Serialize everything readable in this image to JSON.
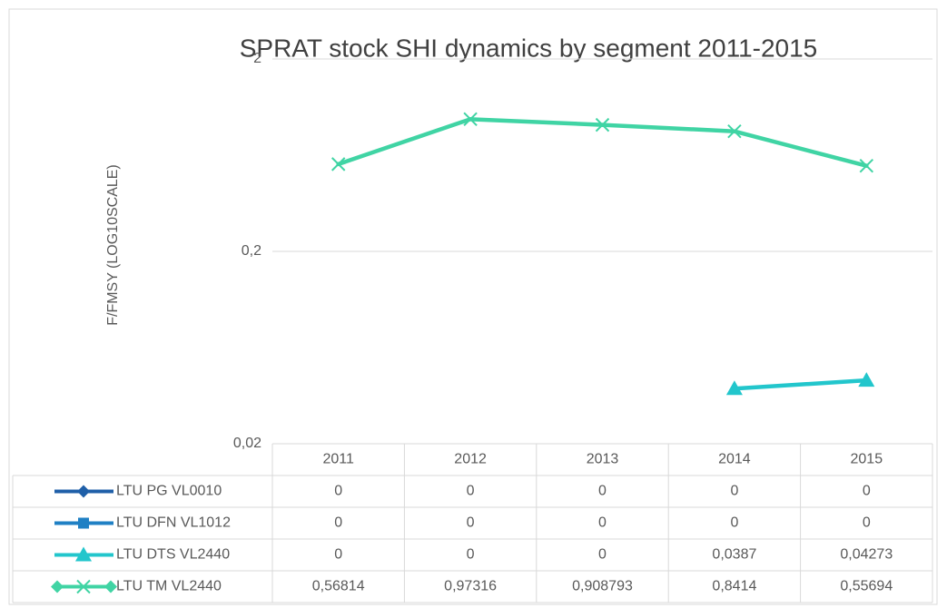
{
  "chart_data": {
    "type": "line",
    "title": "SPRAT stock SHI dynamics  by segment 2011-2015",
    "y_label": "F/FMSY (LOG10SCALE)",
    "categories": [
      "2011",
      "2012",
      "2013",
      "2014",
      "2015"
    ],
    "log_scale": true,
    "ylim": [
      0.02,
      2
    ],
    "yticks": [
      {
        "value": 0.02,
        "label": "0,02"
      },
      {
        "value": 0.2,
        "label": "0,2"
      },
      2
    ],
    "grid": true,
    "series": [
      {
        "name": "LTU PG VL0010",
        "color": "#1f5fa8",
        "marker": "diamond",
        "values": [
          0,
          0,
          0,
          0,
          0
        ],
        "value_labels": [
          "0",
          "0",
          "0",
          "0",
          "0"
        ]
      },
      {
        "name": "LTU DFN VL1012",
        "color": "#1f80c4",
        "marker": "square",
        "values": [
          0,
          0,
          0,
          0,
          0
        ],
        "value_labels": [
          "0",
          "0",
          "0",
          "0",
          "0"
        ]
      },
      {
        "name": "LTU DTS VL2440",
        "color": "#22c6cc",
        "marker": "triangle",
        "values": [
          0,
          0,
          0,
          0.0387,
          0.04273
        ],
        "value_labels": [
          "0",
          "0",
          "0",
          "0,0387",
          "0,04273"
        ]
      },
      {
        "name": "LTU TM VL2440",
        "color": "#40d4a4",
        "marker": "x",
        "values": [
          0.56814,
          0.97316,
          0.908793,
          0.8414,
          0.55694
        ],
        "value_labels": [
          "0,56814",
          "0,97316",
          "0,908793",
          "0,8414",
          "0,55694"
        ]
      }
    ]
  }
}
